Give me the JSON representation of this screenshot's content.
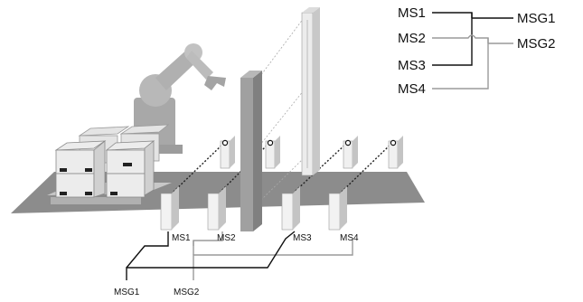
{
  "scene": {
    "sensor_labels": [
      "MS1",
      "MS2",
      "MS3",
      "MS4"
    ],
    "group_labels": [
      "MSG1",
      "MSG2"
    ]
  },
  "legend": {
    "inputs": [
      "MS1",
      "MS2",
      "MS3",
      "MS4"
    ],
    "outputs": [
      "MSG1",
      "MSG2"
    ]
  },
  "colors": {
    "group1_line": "#000000",
    "group2_line": "#9a9a9a",
    "floor": "#8c8c8c",
    "robot": "#b4b4b4",
    "box": "#e6e6e6"
  }
}
